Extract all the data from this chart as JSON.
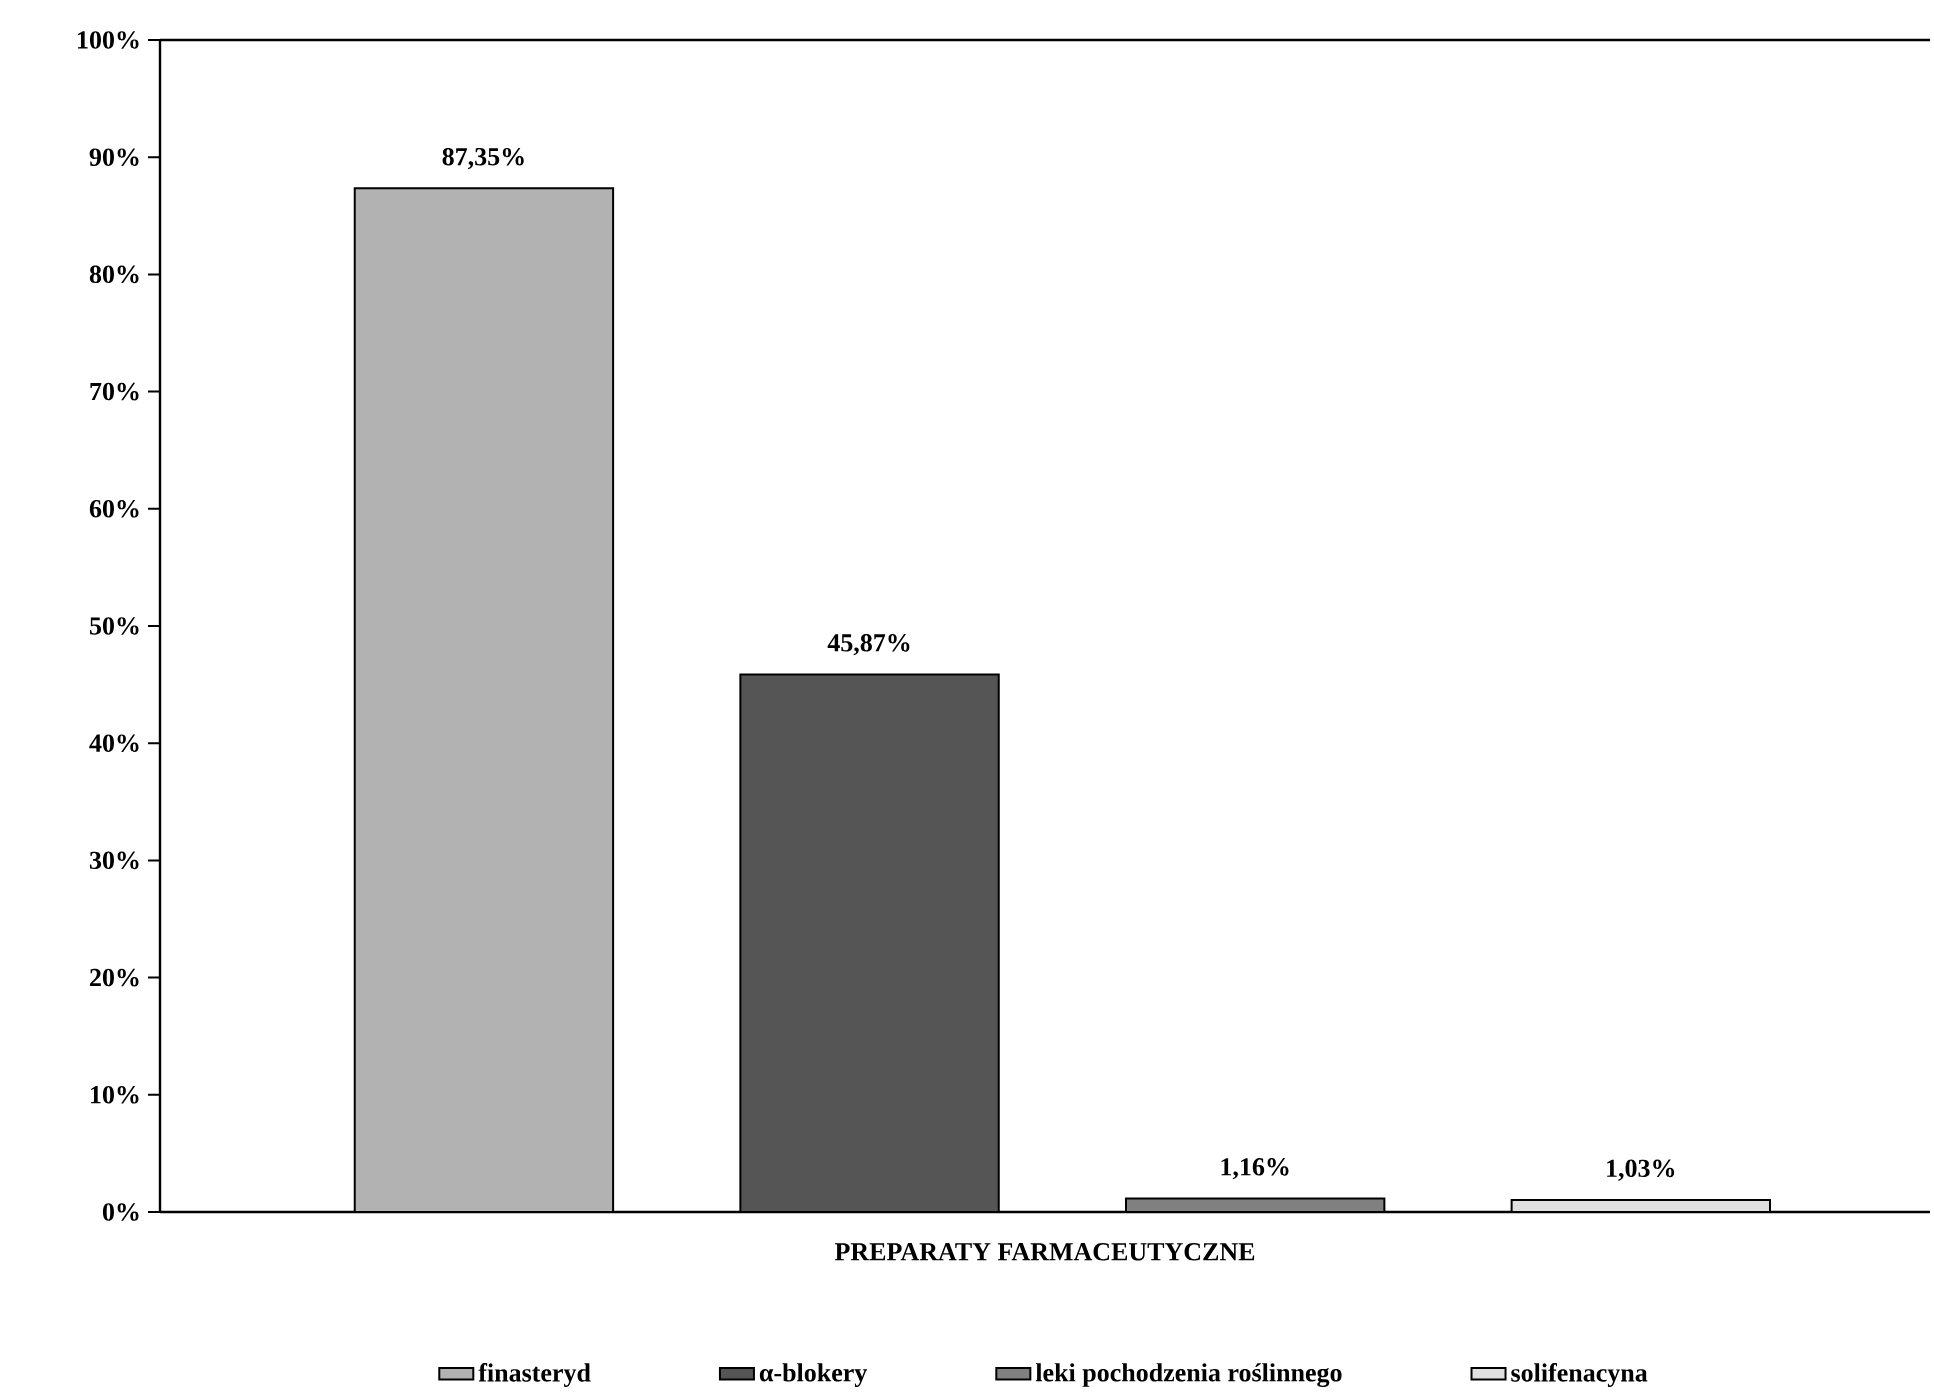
{
  "chart_data": {
    "type": "bar",
    "xlabel": "PREPARATY FARMACEUTYCZNE",
    "categories": [
      null,
      null,
      null,
      null
    ],
    "series": [
      {
        "name": "finasteryd",
        "color": "#b2b2b2",
        "values": [
          87.35,
          null,
          null,
          null
        ],
        "value_labels": [
          "87,35%",
          null,
          null,
          null
        ]
      },
      {
        "name": "α-blokery",
        "color": "#555555",
        "values": [
          null,
          45.87,
          null,
          null
        ],
        "value_labels": [
          null,
          "45,87%",
          null,
          null
        ]
      },
      {
        "name": "leki pochodzenia roślinnego",
        "color": "#808080",
        "values": [
          null,
          null,
          1.16,
          null
        ],
        "value_labels": [
          null,
          null,
          "1,16%",
          null
        ]
      },
      {
        "name": "solifenacyna",
        "color": "#e0e0e0",
        "values": [
          null,
          null,
          null,
          1.03
        ],
        "value_labels": [
          null,
          null,
          null,
          "1,03%"
        ]
      }
    ],
    "ylim": [
      0,
      100
    ],
    "yticks": [
      {
        "value": 0,
        "label": "0%"
      },
      {
        "value": 10,
        "label": "10%"
      },
      {
        "value": 20,
        "label": "20%"
      },
      {
        "value": 30,
        "label": "30%"
      },
      {
        "value": 40,
        "label": "40%"
      },
      {
        "value": 50,
        "label": "50%"
      },
      {
        "value": 60,
        "label": "60%"
      },
      {
        "value": 70,
        "label": "70%"
      },
      {
        "value": 80,
        "label": "80%"
      },
      {
        "value": 90,
        "label": "90%"
      },
      {
        "value": 100,
        "label": "100%"
      }
    ],
    "legend": "bottom"
  }
}
